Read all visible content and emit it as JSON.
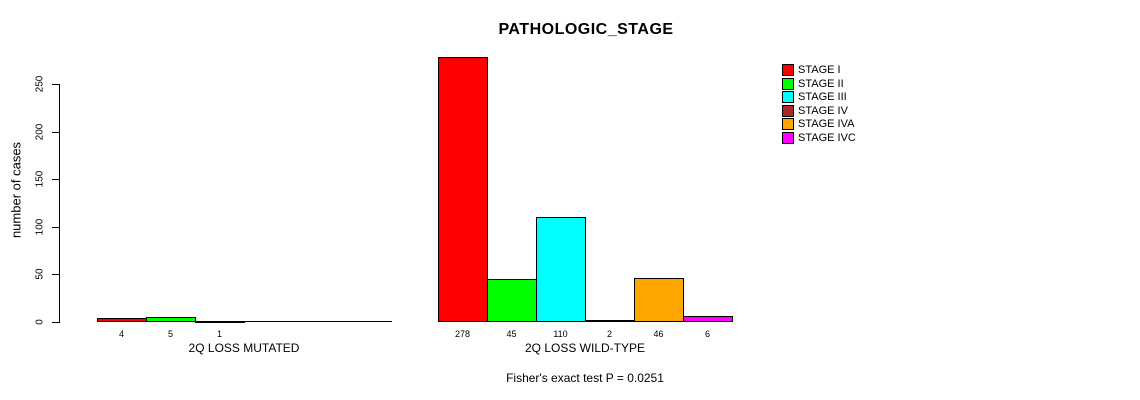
{
  "chart_data": {
    "type": "bar",
    "title": "PATHOLOGIC_STAGE",
    "ylabel": "number of cases",
    "xlabel": "",
    "ylim": [
      0,
      250
    ],
    "yticks": [
      0,
      50,
      100,
      150,
      200,
      250
    ],
    "grid": false,
    "legend_position": "right",
    "categories": [
      "2Q LOSS MUTATED",
      "2Q LOSS WILD-TYPE"
    ],
    "series": [
      {
        "name": "STAGE I",
        "color": "#FF0000",
        "values": [
          4,
          278
        ]
      },
      {
        "name": "STAGE II",
        "color": "#00FF00",
        "values": [
          5,
          45
        ]
      },
      {
        "name": "STAGE III",
        "color": "#00FFFF",
        "values": [
          1,
          110
        ]
      },
      {
        "name": "STAGE IV",
        "color": "#A52A2A",
        "values": [
          0,
          2
        ]
      },
      {
        "name": "STAGE IVA",
        "color": "#FFA500",
        "values": [
          0,
          46
        ]
      },
      {
        "name": "STAGE IVC",
        "color": "#FF00FF",
        "values": [
          0,
          6
        ]
      }
    ],
    "bar_labels": [
      [
        "4",
        "5",
        "1",
        "",
        "",
        ""
      ],
      [
        "278",
        "45",
        "110",
        "2",
        "46",
        "6"
      ]
    ],
    "footnote": "Fisher's exact test P = 0.0251"
  }
}
